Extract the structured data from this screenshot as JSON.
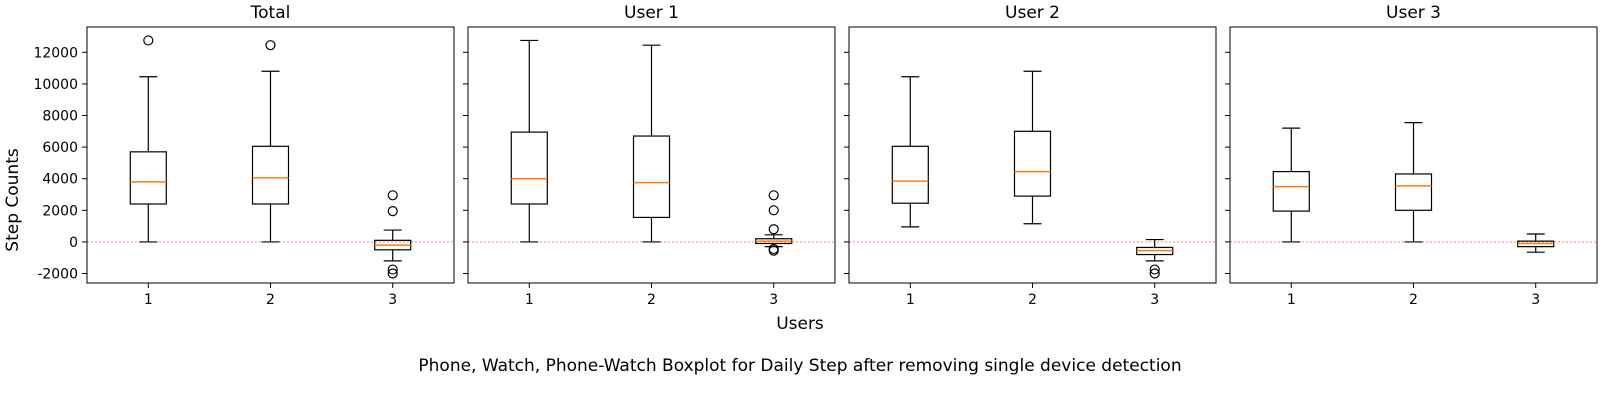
{
  "caption": "Phone, Watch, Phone-Watch Boxplot for Daily Step after removing single device detection",
  "xlabel": "Users",
  "ylabel": "Step Counts",
  "colors": {
    "median": "#ff7f0e",
    "zero_line": "#ff4d4d",
    "box": "#000000"
  },
  "chart_data": [
    {
      "type": "box",
      "title": "Total",
      "categories": [
        "1",
        "2",
        "3"
      ],
      "ylim": [
        -2600,
        13600
      ],
      "yticks": [
        -2000,
        0,
        2000,
        4000,
        6000,
        8000,
        10000,
        12000
      ],
      "reference_line_y": 0,
      "boxes": [
        {
          "category": "1",
          "whisker_low": 0,
          "q1": 2400,
          "median": 3800,
          "q3": 5700,
          "whisker_high": 10450,
          "outliers": [
            12750
          ]
        },
        {
          "category": "2",
          "whisker_low": 0,
          "q1": 2400,
          "median": 4050,
          "q3": 6050,
          "whisker_high": 10800,
          "outliers": [
            12450
          ]
        },
        {
          "category": "3",
          "whisker_low": -1200,
          "q1": -500,
          "median": -200,
          "q3": 100,
          "whisker_high": 750,
          "outliers": [
            2950,
            1950,
            -1750,
            -2000
          ]
        }
      ]
    },
    {
      "type": "box",
      "title": "User 1",
      "categories": [
        "1",
        "2",
        "3"
      ],
      "ylim": [
        -2600,
        13600
      ],
      "yticks": [
        -2000,
        0,
        2000,
        4000,
        6000,
        8000,
        10000,
        12000
      ],
      "reference_line_y": 0,
      "boxes": [
        {
          "category": "1",
          "whisker_low": 0,
          "q1": 2400,
          "median": 4000,
          "q3": 6950,
          "whisker_high": 12750,
          "outliers": []
        },
        {
          "category": "2",
          "whisker_low": 0,
          "q1": 1550,
          "median": 3750,
          "q3": 6700,
          "whisker_high": 12450,
          "outliers": []
        },
        {
          "category": "3",
          "whisker_low": -300,
          "q1": -100,
          "median": 50,
          "q3": 200,
          "whisker_high": 450,
          "outliers": [
            2950,
            2000,
            800,
            -450,
            -550
          ]
        }
      ]
    },
    {
      "type": "box",
      "title": "User 2",
      "categories": [
        "1",
        "2",
        "3"
      ],
      "ylim": [
        -2600,
        13600
      ],
      "yticks": [
        -2000,
        0,
        2000,
        4000,
        6000,
        8000,
        10000,
        12000
      ],
      "reference_line_y": 0,
      "boxes": [
        {
          "category": "1",
          "whisker_low": 950,
          "q1": 2450,
          "median": 3850,
          "q3": 6050,
          "whisker_high": 10450,
          "outliers": []
        },
        {
          "category": "2",
          "whisker_low": 1150,
          "q1": 2900,
          "median": 4450,
          "q3": 7000,
          "whisker_high": 10800,
          "outliers": []
        },
        {
          "category": "3",
          "whisker_low": -1200,
          "q1": -800,
          "median": -550,
          "q3": -350,
          "whisker_high": 150,
          "outliers": [
            -1750,
            -2000
          ]
        }
      ]
    },
    {
      "type": "box",
      "title": "User 3",
      "categories": [
        "1",
        "2",
        "3"
      ],
      "ylim": [
        -2600,
        13600
      ],
      "yticks": [
        -2000,
        0,
        2000,
        4000,
        6000,
        8000,
        10000,
        12000
      ],
      "reference_line_y": 0,
      "boxes": [
        {
          "category": "1",
          "whisker_low": 0,
          "q1": 1950,
          "median": 3500,
          "q3": 4450,
          "whisker_high": 7200,
          "outliers": []
        },
        {
          "category": "2",
          "whisker_low": 0,
          "q1": 2000,
          "median": 3550,
          "q3": 4300,
          "whisker_high": 7550,
          "outliers": []
        },
        {
          "category": "3",
          "whisker_low": -650,
          "q1": -300,
          "median": -100,
          "q3": 50,
          "whisker_high": 500,
          "outliers": []
        }
      ]
    }
  ]
}
